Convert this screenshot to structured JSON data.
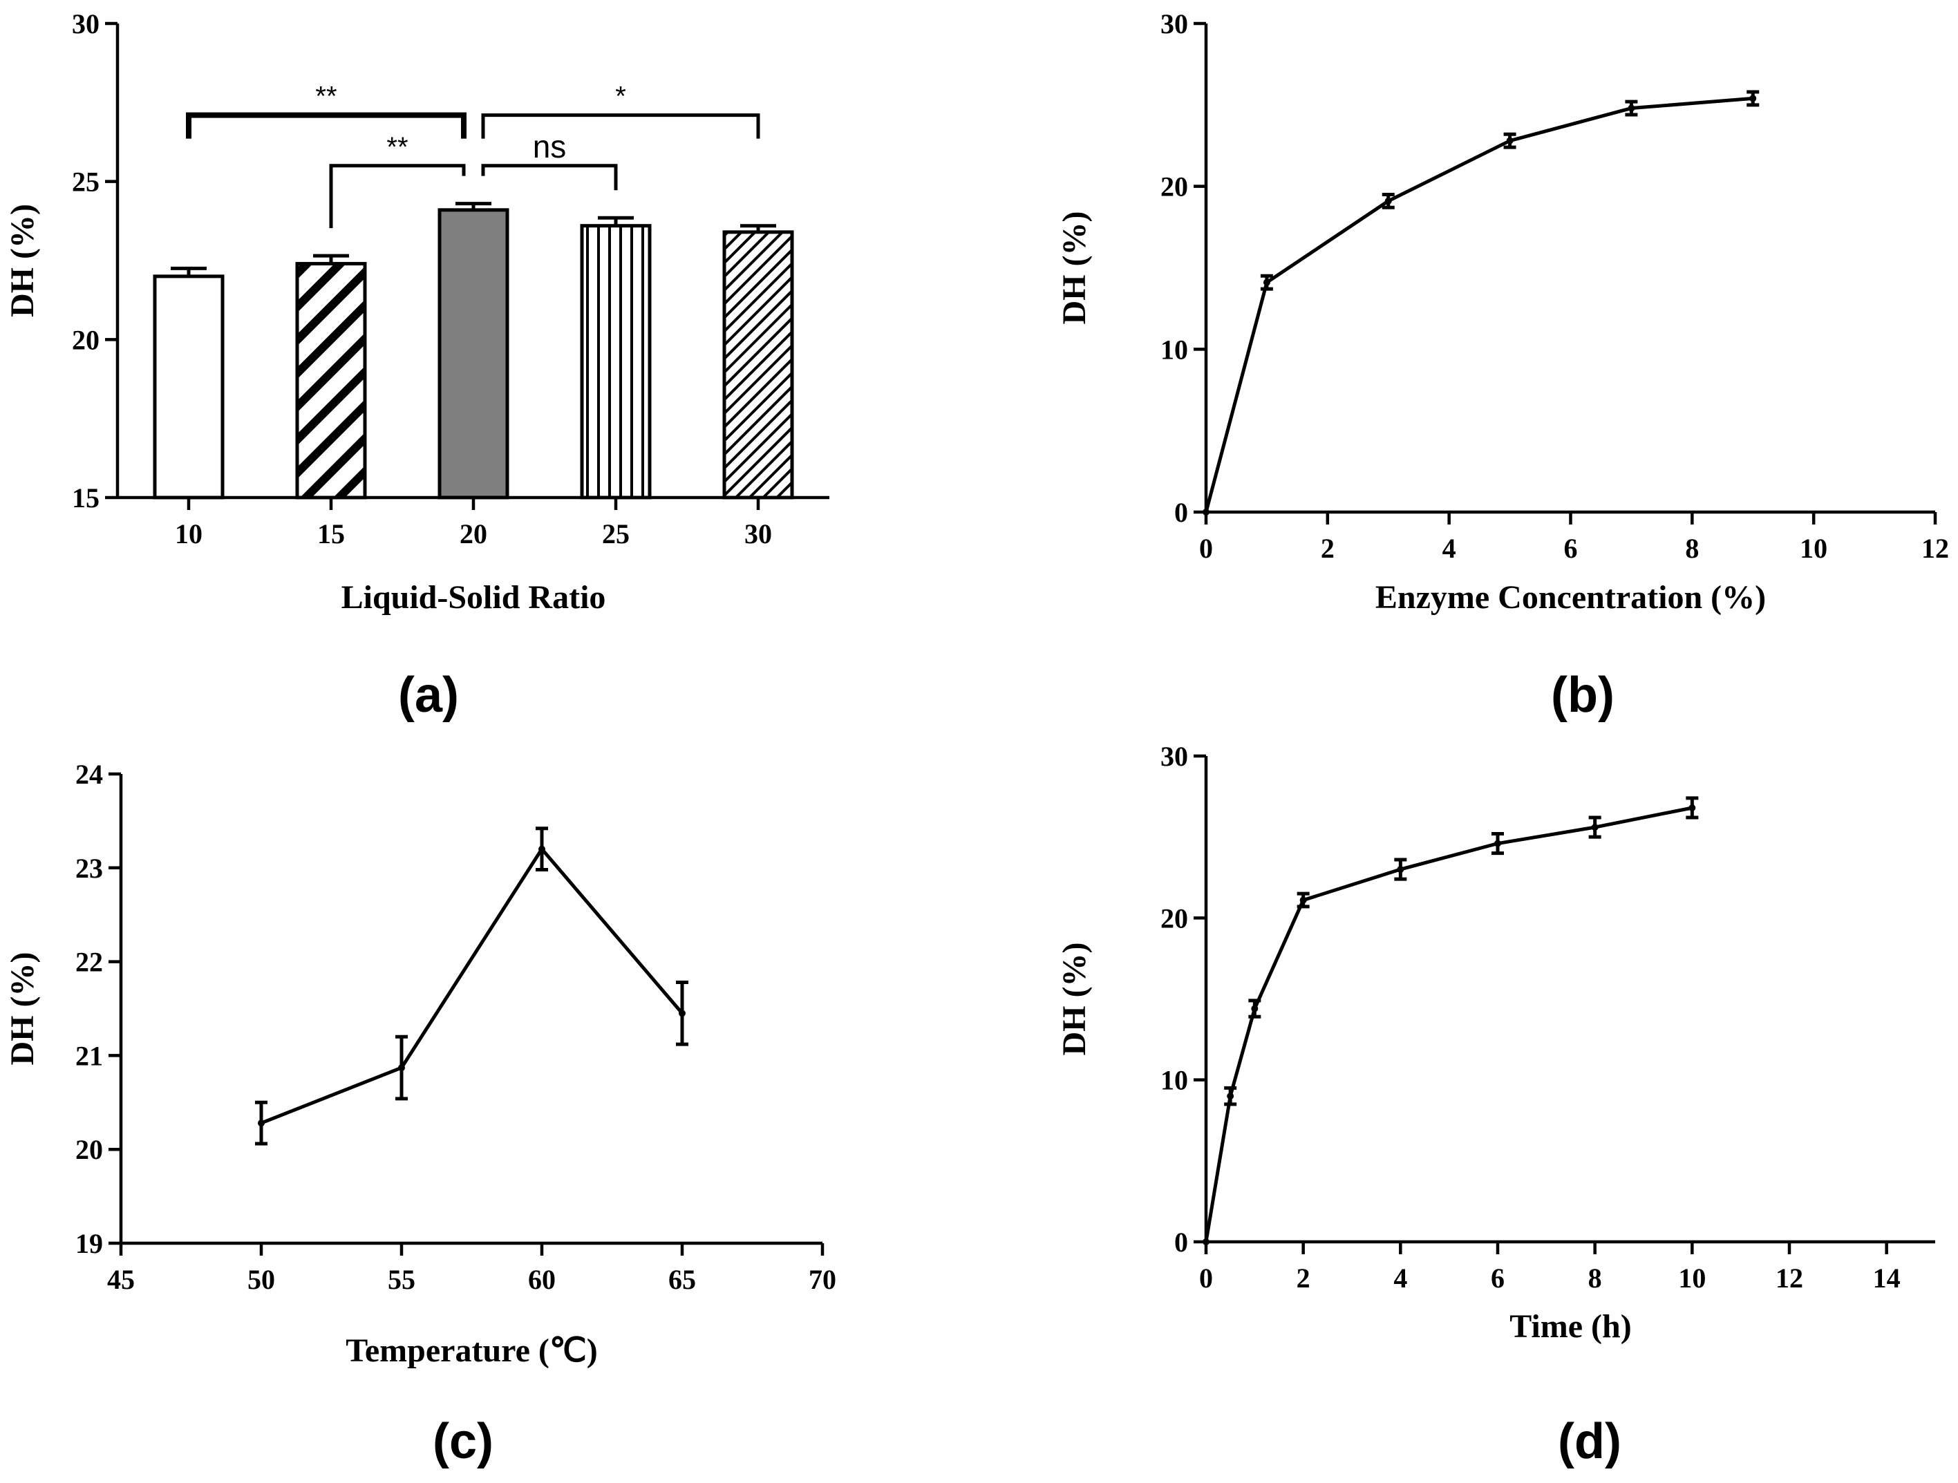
{
  "chart_data": [
    {
      "id": "a",
      "type": "bar",
      "panel_label": "(a)",
      "xlabel": "Liquid-Solid Ratio",
      "ylabel": "DH (%)",
      "ylim": [
        15,
        30
      ],
      "yticks": [
        15,
        20,
        25,
        30
      ],
      "categories": [
        "10",
        "15",
        "20",
        "25",
        "30"
      ],
      "values": [
        22.0,
        22.4,
        24.1,
        23.6,
        23.4
      ],
      "errors": [
        0.25,
        0.25,
        0.2,
        0.25,
        0.2
      ],
      "fills": [
        "white",
        "hatch-wide",
        "gray",
        "vertical-lines",
        "hatch-narrow"
      ],
      "significance": [
        {
          "from": 0,
          "to": 2,
          "label": "**",
          "level": 27.1
        },
        {
          "from": 1,
          "to": 2,
          "label": "**",
          "level": 25.5
        },
        {
          "from": 2,
          "to": 3,
          "label": "ns",
          "level": 25.5
        },
        {
          "from": 2,
          "to": 4,
          "label": "*",
          "level": 27.1
        }
      ]
    },
    {
      "id": "b",
      "type": "line",
      "panel_label": "(b)",
      "xlabel": "Enzyme Concentration (%)",
      "ylabel": "DH (%)",
      "xlim": [
        0,
        12
      ],
      "ylim": [
        0,
        30
      ],
      "xticks": [
        0,
        2,
        4,
        6,
        8,
        10,
        12
      ],
      "yticks": [
        0,
        10,
        20,
        30
      ],
      "x": [
        0,
        1,
        3,
        5,
        7,
        9
      ],
      "y": [
        0,
        14.1,
        19.1,
        22.8,
        24.8,
        25.4
      ],
      "errors": [
        0,
        0.4,
        0.4,
        0.4,
        0.4,
        0.4
      ]
    },
    {
      "id": "c",
      "type": "line",
      "panel_label": "(c)",
      "xlabel": "Temperature (℃)",
      "ylabel": "DH (%)",
      "xlim": [
        45,
        70
      ],
      "ylim": [
        19,
        24
      ],
      "xticks": [
        45,
        50,
        55,
        60,
        65,
        70
      ],
      "yticks": [
        19,
        20,
        21,
        22,
        23,
        24
      ],
      "x": [
        50,
        55,
        60,
        65
      ],
      "y": [
        20.28,
        20.87,
        23.2,
        21.45
      ],
      "errors": [
        0.22,
        0.33,
        0.22,
        0.33
      ]
    },
    {
      "id": "d",
      "type": "line",
      "panel_label": "(d)",
      "xlabel": "Time (h)",
      "ylabel": "DH (%)",
      "xlim": [
        0,
        15
      ],
      "ylim": [
        0,
        30
      ],
      "xticks": [
        0,
        2,
        4,
        6,
        8,
        10,
        12,
        14
      ],
      "yticks": [
        0,
        10,
        20,
        30
      ],
      "x": [
        0,
        0.5,
        1,
        2,
        4,
        6,
        8,
        10
      ],
      "y": [
        0,
        9.0,
        14.4,
        21.1,
        23.0,
        24.6,
        25.6,
        26.8
      ],
      "errors": [
        0,
        0.5,
        0.5,
        0.4,
        0.6,
        0.6,
        0.6,
        0.6
      ]
    }
  ]
}
